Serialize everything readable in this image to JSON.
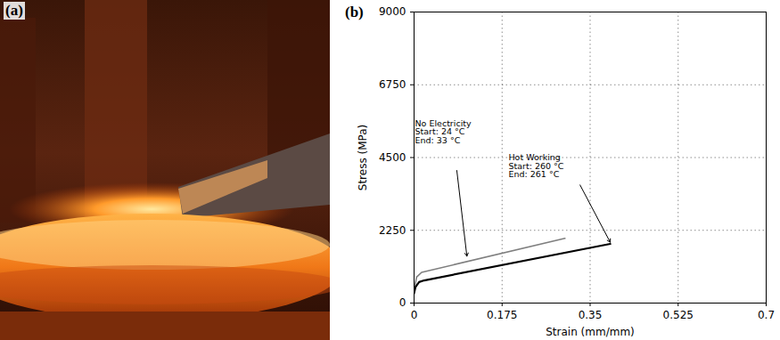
{
  "chart_data": [
    {
      "type": "image",
      "title": "(a)"
    },
    {
      "type": "line",
      "title": "(b)",
      "x_label": "Strain (mm/mm)",
      "y_label": "Stress (MPa)",
      "xlim": [
        0,
        0.7
      ],
      "xticks": [
        0,
        0.175,
        0.35,
        0.525,
        0.7
      ],
      "ylim": [
        0,
        9000
      ],
      "yticks": [
        0,
        2250,
        4500,
        6750,
        9000
      ],
      "grid": true,
      "series": [
        {
          "name": "No Electricity",
          "color": "#7f7f7f",
          "x": [
            0,
            0.005,
            0.015,
            0.3
          ],
          "values": [
            400,
            800,
            950,
            2000
          ],
          "annotation": {
            "lines": [
              "Start: 24 °C",
              "End: 33 °C"
            ],
            "x": 0.0,
            "y": 5650,
            "arrow_from": [
              0.085,
              4100
            ],
            "arrow_to": [
              0.105,
              1450
            ]
          }
        },
        {
          "name": "Hot Working",
          "color": "#000000",
          "x": [
            0,
            0.003,
            0.01,
            0.02,
            0.39
          ],
          "values": [
            300,
            500,
            650,
            700,
            1830
          ],
          "annotation": {
            "lines": [
              "Start: 260 °C",
              "End: 261 °C"
            ],
            "x": 0.186,
            "y": 4600,
            "arrow_from": [
              0.33,
              3650
            ],
            "arrow_to": [
              0.39,
              1880
            ]
          }
        }
      ]
    }
  ]
}
